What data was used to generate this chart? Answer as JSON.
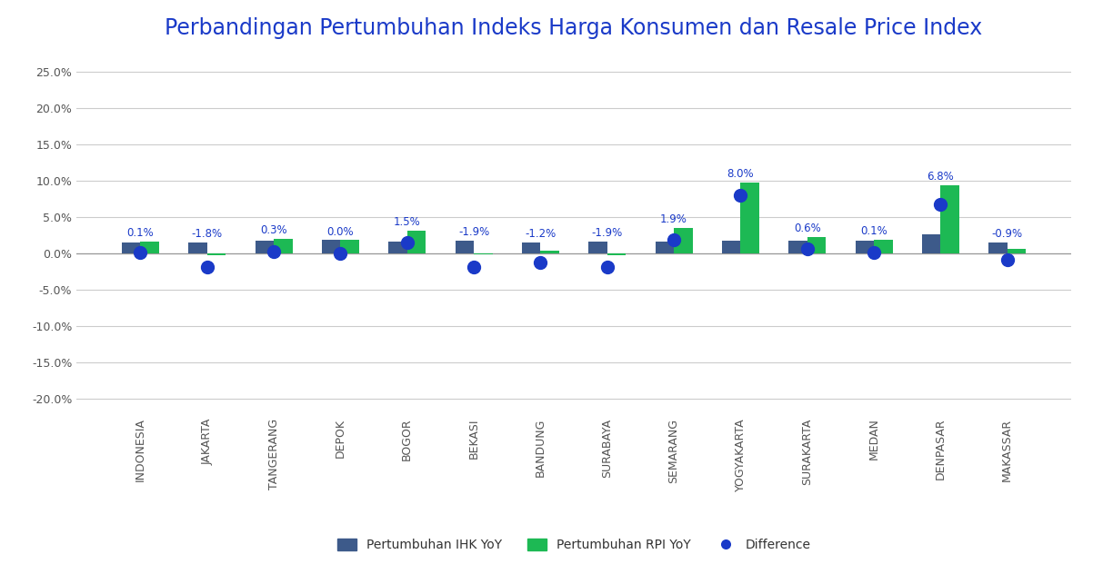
{
  "title": "Perbandingan Pertumbuhan Indeks Harga Konsumen dan Resale Price Index",
  "categories": [
    "INDONESIA",
    "JAKARTA",
    "TANGERANG",
    "DEPOK",
    "BOGOR",
    "BEKASI",
    "BANDUNG",
    "SURABAYA",
    "SEMARANG",
    "YOGYAKARTA",
    "SURAKARTA",
    "MEDAN",
    "DENPASAR",
    "MAKASSAR"
  ],
  "ihk_values": [
    1.57,
    1.56,
    1.76,
    1.84,
    1.65,
    1.74,
    1.55,
    1.62,
    1.59,
    1.79,
    1.72,
    1.78,
    2.65,
    1.56
  ],
  "rpi_values": [
    1.67,
    -0.22,
    2.06,
    1.84,
    3.15,
    -0.16,
    0.35,
    -0.28,
    3.49,
    9.79,
    2.32,
    1.88,
    9.45,
    0.66
  ],
  "difference": [
    0.1,
    -1.8,
    0.3,
    0.0,
    1.5,
    -1.9,
    -1.2,
    -1.9,
    1.9,
    8.0,
    0.6,
    0.1,
    6.8,
    -0.9
  ],
  "bar_color_ihk": "#3d5a8a",
  "bar_color_rpi": "#1db954",
  "dot_color": "#1a3ac8",
  "label_color": "#1a3ac8",
  "title_color": "#1a3ac8",
  "background_color": "#ffffff",
  "grid_color": "#cccccc",
  "ylim": [
    -22,
    27
  ],
  "yticks": [
    -20.0,
    -15.0,
    -10.0,
    -5.0,
    0.0,
    5.0,
    10.0,
    15.0,
    20.0,
    25.0
  ],
  "legend_labels": [
    "Pertumbuhan IHK YoY",
    "Pertumbuhan RPI YoY",
    "Difference"
  ],
  "title_fontsize": 17,
  "tick_fontsize": 9,
  "label_fontsize": 8.5
}
